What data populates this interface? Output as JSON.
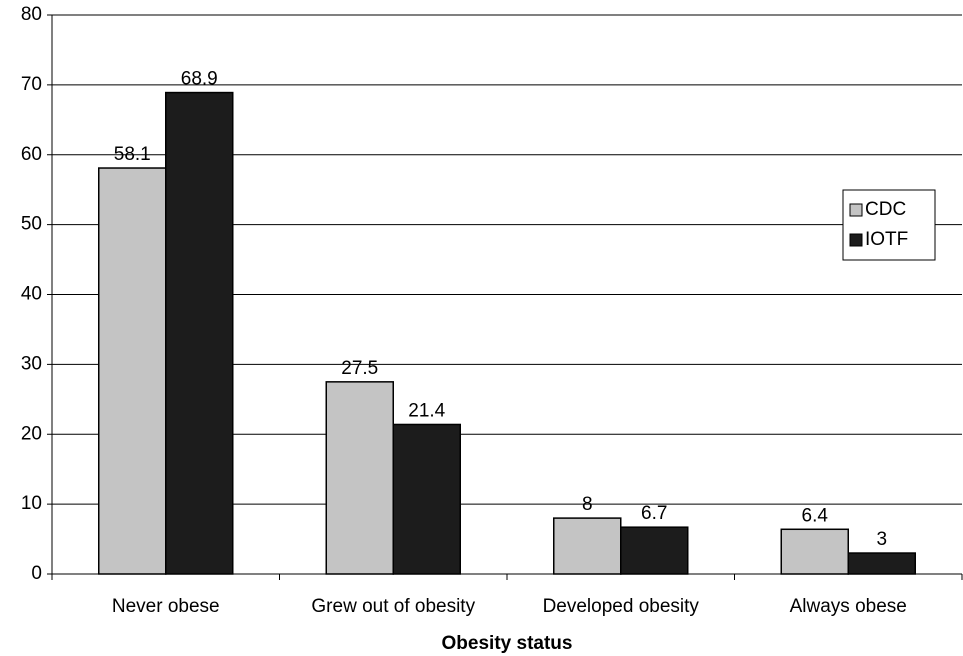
{
  "chart_data": {
    "type": "bar",
    "x_label": "Obesity status",
    "categories": [
      "Never obese",
      "Grew out of obesity",
      "Developed obesity",
      "Always obese"
    ],
    "series": [
      {
        "name": "CDC",
        "color": "#c4c4c4",
        "values": [
          58.1,
          27.5,
          8,
          6.4
        ]
      },
      {
        "name": "IOTF",
        "color": "#1c1c1c",
        "values": [
          68.9,
          21.4,
          6.7,
          3
        ]
      }
    ],
    "ylim": [
      0,
      80
    ],
    "yticks": [
      0,
      10,
      20,
      30,
      40,
      50,
      60,
      70,
      80
    ],
    "grid": true,
    "legend": "right"
  }
}
